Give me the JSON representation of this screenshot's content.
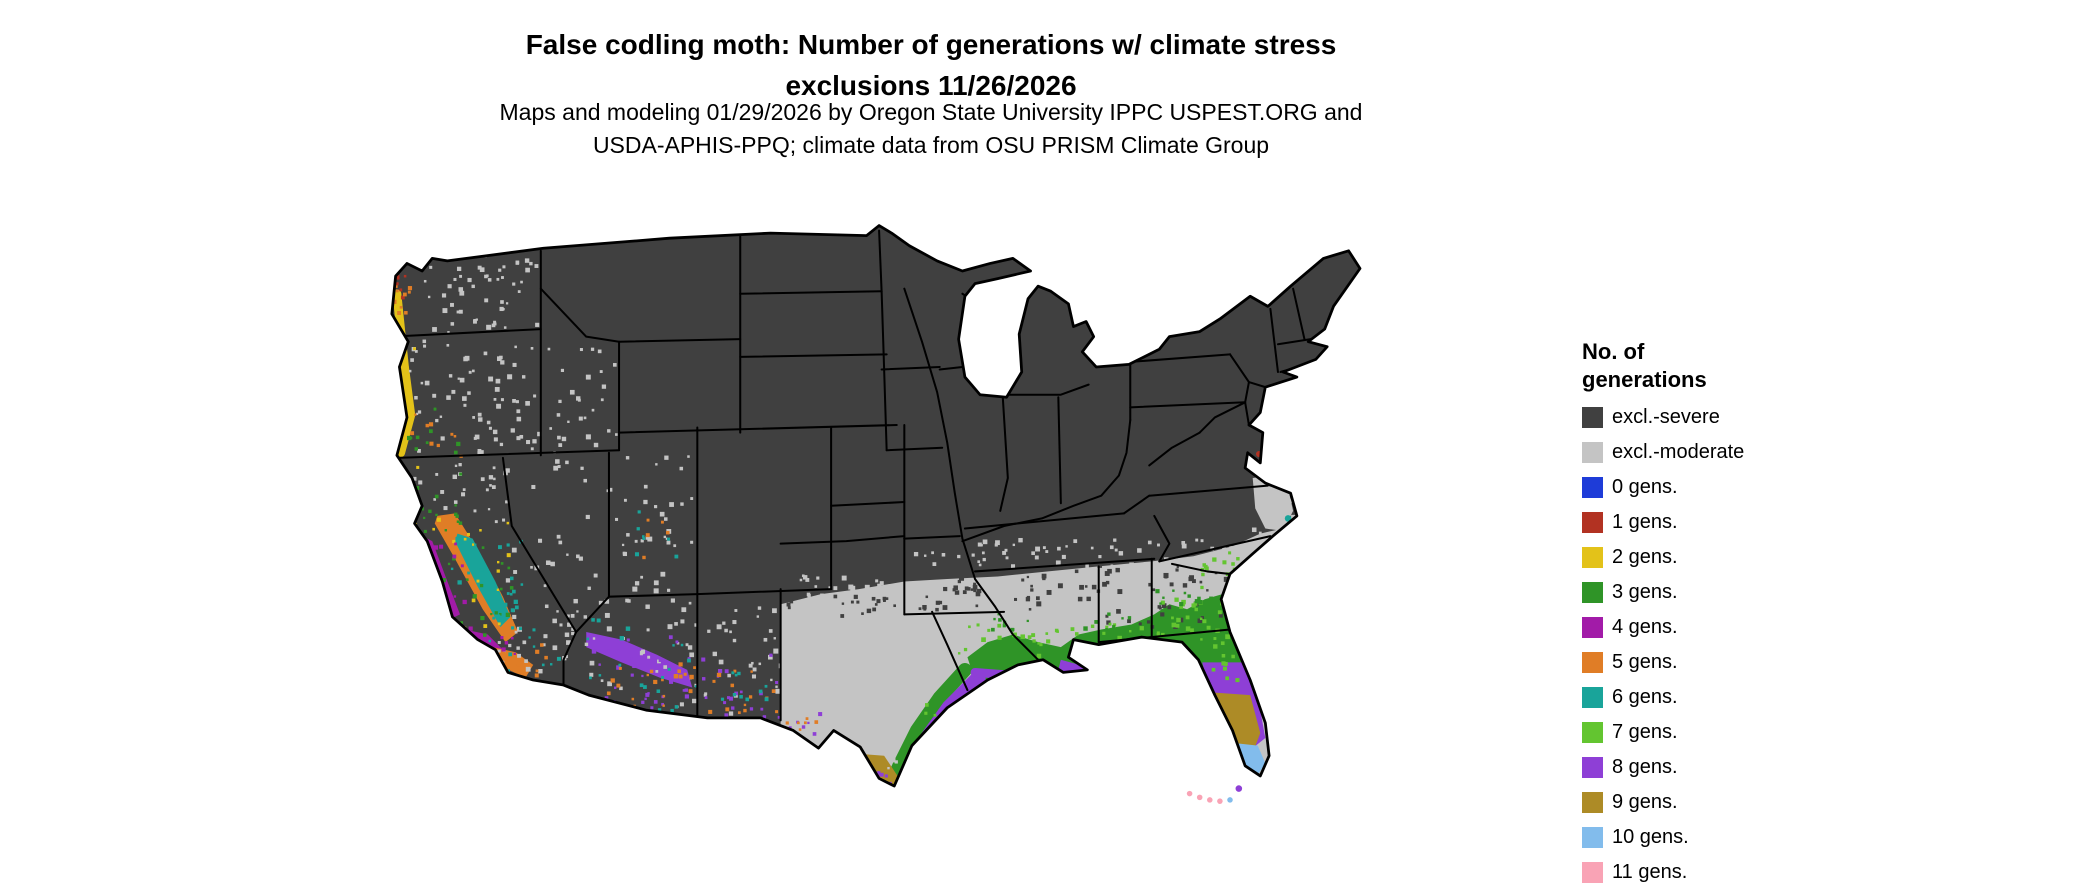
{
  "title": {
    "line1": "False codling moth: Number of generations w/ climate stress",
    "line2": "exclusions 11/26/2026"
  },
  "subtitle": {
    "line1": "Maps and modeling 01/29/2026 by Oregon State University IPPC USPEST.ORG and",
    "line2": "USDA-APHIS-PPQ; climate data from OSU PRISM Climate Group"
  },
  "legend": {
    "title_line1": "No. of",
    "title_line2": "generations",
    "items": [
      {
        "key": "severe",
        "label": "excl.-severe",
        "color": "#404040"
      },
      {
        "key": "moderate",
        "label": "excl.-moderate",
        "color": "#C4C4C4"
      },
      {
        "key": "g0",
        "label": "0 gens.",
        "color": "#1E3CD8"
      },
      {
        "key": "g1",
        "label": "1 gens.",
        "color": "#B23222"
      },
      {
        "key": "g2",
        "label": "2 gens.",
        "color": "#E3C219"
      },
      {
        "key": "g3",
        "label": "3 gens.",
        "color": "#2F9427"
      },
      {
        "key": "g4",
        "label": "4 gens.",
        "color": "#A21BA8"
      },
      {
        "key": "g5",
        "label": "5 gens.",
        "color": "#E07D26"
      },
      {
        "key": "g6",
        "label": "6 gens.",
        "color": "#19A49A"
      },
      {
        "key": "g7",
        "label": "7 gens.",
        "color": "#63C530"
      },
      {
        "key": "g8",
        "label": "8 gens.",
        "color": "#8E3FD6"
      },
      {
        "key": "g9",
        "label": "9 gens.",
        "color": "#AD8B26"
      },
      {
        "key": "g10",
        "label": "10 gens.",
        "color": "#82BCEC"
      },
      {
        "key": "g11",
        "label": "11 gens.",
        "color": "#F9A3B5"
      }
    ]
  },
  "map": {
    "land_border_color": "#000000",
    "background_color": "#FFFFFF"
  }
}
